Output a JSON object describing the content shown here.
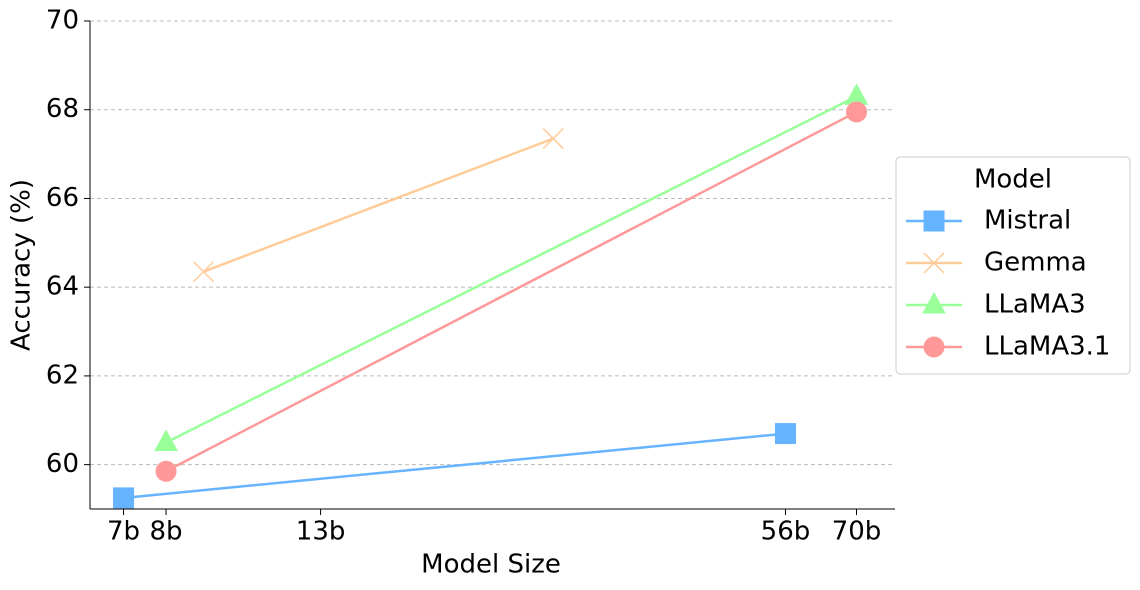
{
  "chart_data": {
    "type": "line",
    "x_label": "Model Size",
    "y_label": "Accuracy (%)",
    "xscale": "log",
    "xlim": [
      6.3,
      79
    ],
    "ylim": [
      59,
      70
    ],
    "xticks": [
      {
        "value": 7,
        "label": "7b"
      },
      {
        "value": 8,
        "label": "8b"
      },
      {
        "value": 13,
        "label": "13b"
      },
      {
        "value": 56,
        "label": "56b"
      },
      {
        "value": 70,
        "label": "70b"
      }
    ],
    "yticks": [
      60,
      62,
      64,
      66,
      68,
      70
    ],
    "grid": true,
    "legend_title": "Model",
    "legend_position": "right",
    "series": [
      {
        "name": "Mistral",
        "color": "#66b3ff",
        "marker": "square",
        "x": [
          7,
          56
        ],
        "values": [
          59.25,
          60.7
        ]
      },
      {
        "name": "Gemma",
        "color": "#ffcc99",
        "marker": "x",
        "x": [
          9,
          27
        ],
        "values": [
          64.35,
          67.35
        ]
      },
      {
        "name": "LLaMA3",
        "color": "#99ff99",
        "marker": "triangle",
        "x": [
          8,
          70
        ],
        "values": [
          60.5,
          68.3
        ]
      },
      {
        "name": "LLaMA3.1",
        "color": "#ff9999",
        "marker": "circle",
        "x": [
          8,
          70
        ],
        "values": [
          59.85,
          67.95
        ]
      }
    ]
  }
}
